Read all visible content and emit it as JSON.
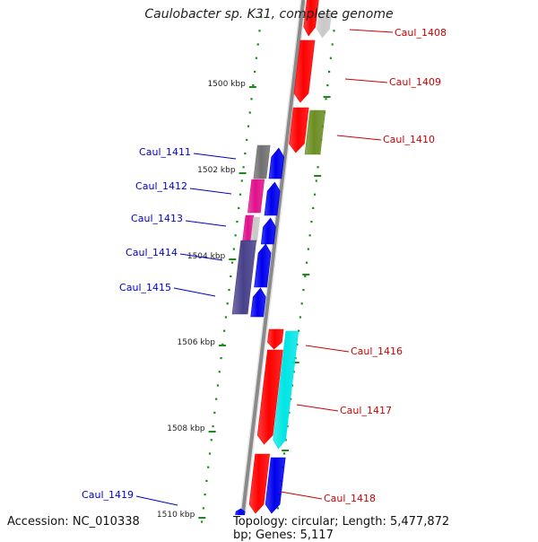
{
  "title": "Caulobacter sp. K31, complete genome",
  "footer": {
    "accession_label": "Accession: ",
    "accession": "NC_010338",
    "topology_label": "Topology: ",
    "topology": "circular",
    "length_label": "; Length: ",
    "length": "5,477,872 bp",
    "genes_label": "; Genes: ",
    "genes": "5,117"
  },
  "colors": {
    "backbone": "#8a8a8a",
    "tick": "#1a8a1a",
    "label_forward": "#cc0000",
    "label_reverse": "#0000cc",
    "red": "#ff0000",
    "blue": "#0000ee",
    "cyan": "#00e5e5",
    "olive": "#6b8e23",
    "gray": "#707070",
    "light_gray": "#c8c8c8",
    "magenta": "#e0108a",
    "dark_slate": "#48408a"
  },
  "chart_data": {
    "type": "genome-map",
    "units": "kbp",
    "tick_labels": [
      "1500 kbp",
      "1502 kbp",
      "1504 kbp",
      "1506 kbp",
      "1508 kbp",
      "1510 kbp"
    ],
    "genes": [
      {
        "label": "Caul_1408",
        "strand": "+"
      },
      {
        "label": "Caul_1409",
        "strand": "+"
      },
      {
        "label": "Caul_1410",
        "strand": "+"
      },
      {
        "label": "Caul_1411",
        "strand": "-"
      },
      {
        "label": "Caul_1412",
        "strand": "-"
      },
      {
        "label": "Caul_1413",
        "strand": "-"
      },
      {
        "label": "Caul_1414",
        "strand": "-"
      },
      {
        "label": "Caul_1415",
        "strand": "-"
      },
      {
        "label": "Caul_1416",
        "strand": "+"
      },
      {
        "label": "Caul_1417",
        "strand": "+"
      },
      {
        "label": "Caul_1418",
        "strand": "+"
      },
      {
        "label": "Caul_1419",
        "strand": "-"
      }
    ]
  }
}
